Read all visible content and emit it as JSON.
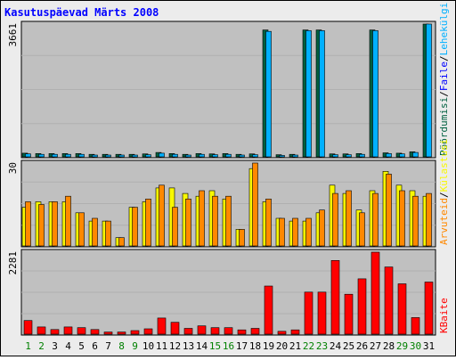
{
  "title": "Kasutuspäevad Märts 2008",
  "colors": {
    "background": "#ececec",
    "plot": "#c0c0c0",
    "title": "#0000ff",
    "visits": "#f8f800",
    "pages": "#ff8800",
    "hits": "#00b0ff",
    "bandwidth": "#ff0000",
    "visitors": "#006040",
    "weekend_label": "#008000",
    "weekday_label": "#000000"
  },
  "chart_data": [
    {
      "type": "bar",
      "panel": "files",
      "ymax": 3661,
      "ymax_label": "3661",
      "legend": [
        {
          "text": "Pöördumisi",
          "color": "#006040"
        },
        {
          "text": "/",
          "color": "#000000"
        },
        {
          "text": "Faile",
          "color": "#0000ff"
        },
        {
          "text": "/",
          "color": "#000000"
        },
        {
          "text": "Lehekülgi",
          "color": "#00b0ff"
        }
      ],
      "series": [
        {
          "name": "Pöördumisi",
          "color": "#006040",
          "values": [
            100,
            90,
            90,
            90,
            90,
            70,
            70,
            70,
            70,
            80,
            120,
            90,
            70,
            90,
            80,
            90,
            70,
            80,
            3500,
            60,
            70,
            3500,
            3500,
            80,
            80,
            90,
            3500,
            110,
            100,
            140,
            3661
          ]
        },
        {
          "name": "Faile",
          "color": "#00b0ff",
          "values": [
            80,
            70,
            70,
            70,
            70,
            50,
            50,
            50,
            50,
            60,
            100,
            70,
            50,
            70,
            60,
            70,
            50,
            60,
            3460,
            40,
            50,
            3480,
            3480,
            60,
            60,
            70,
            3480,
            90,
            80,
            120,
            3661
          ]
        }
      ]
    },
    {
      "type": "bar",
      "panel": "visits",
      "ymax": 30,
      "ymax_label": "30",
      "legend": [
        {
          "text": "Arvuteid",
          "color": "#ff8800"
        },
        {
          "text": "/",
          "color": "#000000"
        },
        {
          "text": "Külastusi",
          "color": "#f8f800"
        }
      ],
      "series": [
        {
          "name": "Külastusi",
          "color": "#f8f800",
          "values": [
            14,
            16,
            16,
            16,
            12,
            9,
            9,
            3,
            14,
            16,
            21,
            21,
            19,
            18,
            20,
            17,
            6,
            28,
            16,
            10,
            9,
            9,
            12,
            22,
            19,
            13,
            20,
            27,
            22,
            20,
            18
          ]
        },
        {
          "name": "Arvuteid",
          "color": "#ff8800",
          "values": [
            16,
            15,
            16,
            18,
            12,
            10,
            9,
            3,
            14,
            17,
            22,
            14,
            17,
            20,
            18,
            18,
            6,
            30,
            17,
            10,
            10,
            10,
            13,
            19,
            20,
            12,
            19,
            26,
            20,
            18,
            19
          ]
        }
      ]
    },
    {
      "type": "bar",
      "panel": "bandwidth",
      "ymax": 2281,
      "ymax_label": "2281",
      "legend": [
        {
          "text": "KBaite",
          "color": "#ff0000"
        }
      ],
      "series": [
        {
          "name": "KBaite",
          "color": "#ff0000",
          "values": [
            380,
            200,
            130,
            200,
            180,
            130,
            60,
            60,
            100,
            150,
            450,
            330,
            160,
            230,
            180,
            180,
            120,
            160,
            1340,
            80,
            120,
            1170,
            1170,
            2050,
            1110,
            1540,
            2281,
            1870,
            1400,
            460,
            1450
          ]
        }
      ]
    }
  ],
  "days": [
    {
      "label": "1",
      "weekend": true
    },
    {
      "label": "2",
      "weekend": true
    },
    {
      "label": "3",
      "weekend": false
    },
    {
      "label": "4",
      "weekend": false
    },
    {
      "label": "5",
      "weekend": false
    },
    {
      "label": "6",
      "weekend": false
    },
    {
      "label": "7",
      "weekend": false
    },
    {
      "label": "8",
      "weekend": true
    },
    {
      "label": "9",
      "weekend": true
    },
    {
      "label": "10",
      "weekend": false
    },
    {
      "label": "11",
      "weekend": false
    },
    {
      "label": "12",
      "weekend": false
    },
    {
      "label": "13",
      "weekend": false
    },
    {
      "label": "14",
      "weekend": false
    },
    {
      "label": "15",
      "weekend": true
    },
    {
      "label": "16",
      "weekend": true
    },
    {
      "label": "17",
      "weekend": false
    },
    {
      "label": "18",
      "weekend": false
    },
    {
      "label": "19",
      "weekend": false
    },
    {
      "label": "20",
      "weekend": false
    },
    {
      "label": "21",
      "weekend": false
    },
    {
      "label": "22",
      "weekend": true
    },
    {
      "label": "23",
      "weekend": true
    },
    {
      "label": "24",
      "weekend": false
    },
    {
      "label": "25",
      "weekend": false
    },
    {
      "label": "26",
      "weekend": false
    },
    {
      "label": "27",
      "weekend": false
    },
    {
      "label": "28",
      "weekend": false
    },
    {
      "label": "29",
      "weekend": true
    },
    {
      "label": "30",
      "weekend": true
    },
    {
      "label": "31",
      "weekend": false
    }
  ]
}
